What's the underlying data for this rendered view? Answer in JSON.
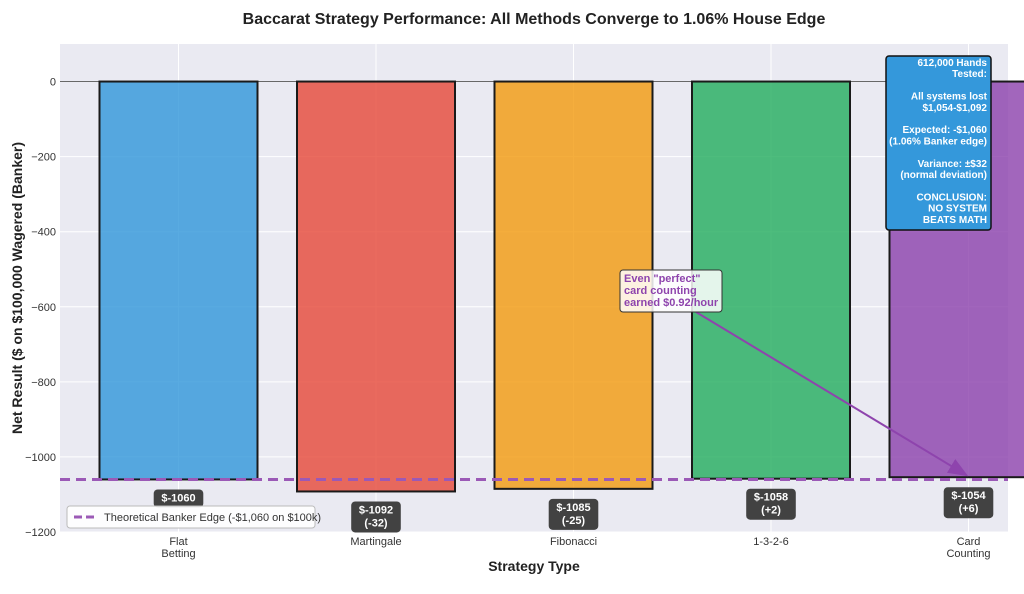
{
  "chart_data": {
    "type": "bar",
    "title": "Baccarat Strategy Performance: All Methods Converge to 1.06% House Edge",
    "xlabel": "Strategy Type",
    "ylabel": "Net Result ($ on $100,000 Wagered (Banker)",
    "categories": [
      "Flat\nBetting",
      "Martingale",
      "Fibonacci",
      "1-3-2-6",
      "Card\nCounting"
    ],
    "values": [
      -1060,
      -1092,
      -1085,
      -1058,
      -1054
    ],
    "data_labels": [
      "$-1060",
      "$-1092\n(-32)",
      "$-1085\n(-25)",
      "$-1058\n(+2)",
      "$-1054\n(+6)"
    ],
    "colors": [
      "#3498db",
      "#e74c3c",
      "#f39c12",
      "#27ae60",
      "#8e44ad"
    ],
    "ylim": [
      -1200,
      100
    ],
    "yticks": [
      0,
      -200,
      -400,
      -600,
      -800,
      -1000,
      -1200
    ],
    "ytick_labels": [
      "0",
      "−200",
      "−400",
      "−600",
      "−800",
      "−1000",
      "−1200"
    ],
    "grid": true,
    "reference_line": {
      "value": -1060,
      "label": "Theoretical Banker Edge (-$1,060 on $100k)",
      "color": "#9b59b6"
    },
    "legend_placement": "lower-left",
    "info_box": {
      "lines": [
        "612,000 Hands",
        "Tested:",
        "",
        "All systems lost",
        "$1,054-$1,092",
        "",
        "Expected: -$1,060",
        "(1.06% Banker edge)",
        "",
        "Variance: ±$32",
        "(normal deviation)",
        "",
        "CONCLUSION:",
        "NO SYSTEM",
        "BEATS MATH"
      ],
      "color": "#3498db"
    },
    "annotation": {
      "lines": [
        "Even \"perfect\"",
        "card counting",
        "earned $0.92/hour"
      ],
      "color": "#8e44ad",
      "target_category": "Card\nCounting",
      "target_value": -1054
    }
  }
}
